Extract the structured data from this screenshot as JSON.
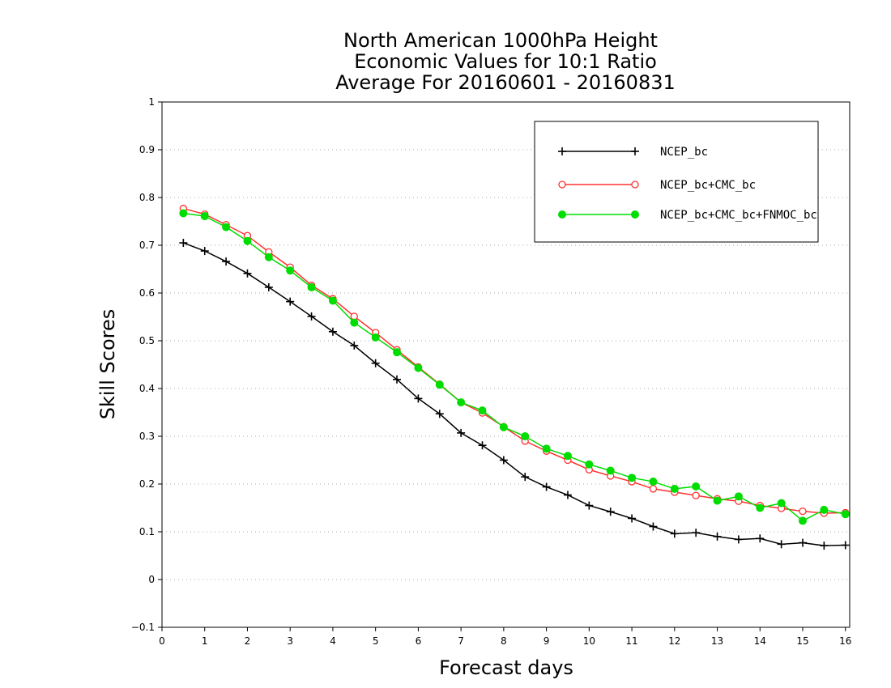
{
  "chart_data": {
    "type": "line",
    "title_lines": [
      "North American 1000hPa Height",
      "Economic Values for 10:1 Ratio",
      "Average For 20160601 - 20160831"
    ],
    "xlabel": "Forecast days",
    "ylabel": "Skill Scores",
    "xlim": [
      0,
      16.1
    ],
    "ylim": [
      -0.1,
      1
    ],
    "xticks": [
      0,
      1,
      2,
      3,
      4,
      5,
      6,
      7,
      8,
      9,
      10,
      11,
      12,
      13,
      14,
      15,
      16
    ],
    "yticks": [
      -0.1,
      0,
      0.1,
      0.2,
      0.3,
      0.4,
      0.5,
      0.6,
      0.7,
      0.8,
      0.9,
      1
    ],
    "ytick_labels": [
      "−0.1",
      "0",
      "0.1",
      "0.2",
      "0.3",
      "0.4",
      "0.5",
      "0.6",
      "0.7",
      "0.8",
      "0.9",
      "1"
    ],
    "grid": "horizontal-dotted",
    "legend_position": "top-right",
    "x": [
      0.5,
      1,
      1.5,
      2,
      2.5,
      3,
      3.5,
      4,
      4.5,
      5,
      5.5,
      6,
      6.5,
      7,
      7.5,
      8,
      8.5,
      9,
      9.5,
      10,
      10.5,
      11,
      11.5,
      12,
      12.5,
      13,
      13.5,
      14,
      14.5,
      15,
      15.5,
      16
    ],
    "series": [
      {
        "name": "NCEP_bc",
        "color": "#000000",
        "marker": "plus",
        "values": [
          0.705,
          0.688,
          0.666,
          0.641,
          0.612,
          0.582,
          0.551,
          0.519,
          0.49,
          0.453,
          0.419,
          0.379,
          0.347,
          0.307,
          0.281,
          0.25,
          0.215,
          0.194,
          0.177,
          0.155,
          0.142,
          0.128,
          0.111,
          0.096,
          0.098,
          0.09,
          0.084,
          0.086,
          0.074,
          0.077,
          0.071,
          0.072
        ]
      },
      {
        "name": "NCEP_bc+CMC_bc",
        "color": "#ff3030",
        "marker": "open-circle",
        "values": [
          0.777,
          0.765,
          0.743,
          0.72,
          0.686,
          0.654,
          0.616,
          0.588,
          0.551,
          0.517,
          0.481,
          0.445,
          0.409,
          0.371,
          0.349,
          0.32,
          0.29,
          0.269,
          0.25,
          0.23,
          0.217,
          0.205,
          0.19,
          0.183,
          0.176,
          0.169,
          0.164,
          0.155,
          0.149,
          0.143,
          0.139,
          0.14
        ]
      },
      {
        "name": "NCEP_bc+CMC_bc+FNMOC_bc",
        "color": "#00dd00",
        "marker": "filled-circle",
        "values": [
          0.767,
          0.761,
          0.738,
          0.709,
          0.675,
          0.647,
          0.612,
          0.584,
          0.538,
          0.507,
          0.476,
          0.443,
          0.408,
          0.371,
          0.354,
          0.319,
          0.3,
          0.274,
          0.259,
          0.241,
          0.228,
          0.213,
          0.205,
          0.19,
          0.195,
          0.165,
          0.174,
          0.15,
          0.16,
          0.123,
          0.146,
          0.137
        ]
      }
    ]
  }
}
